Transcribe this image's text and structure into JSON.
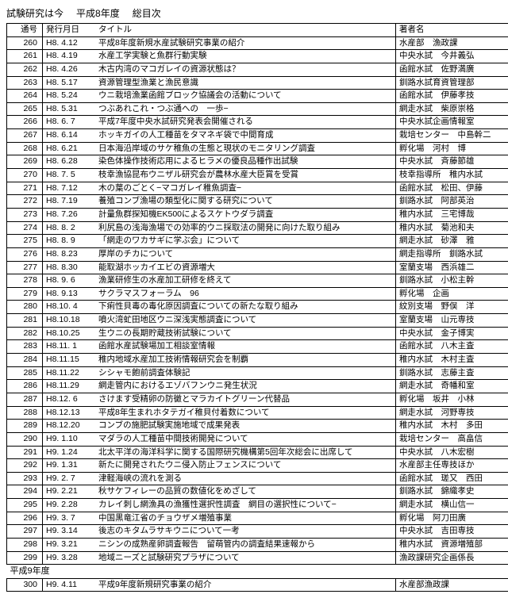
{
  "header": {
    "a": "試験研究は今",
    "b": "平成8年度",
    "c": "総目次"
  },
  "columns": {
    "no": "通号",
    "date": "発行月日",
    "title": "タイトル",
    "author": "著者名"
  },
  "rows": [
    {
      "no": "260",
      "date": "H8. 4.12",
      "title": "平成8年度新規水産試験研究事業の紹介",
      "author": "水産部　漁政課"
    },
    {
      "no": "261",
      "date": "H8. 4.19",
      "title": "水産工学実験と魚群行動実験",
      "author": "中央水試　今井義弘"
    },
    {
      "no": "262",
      "date": "H8. 4.26",
      "title": "木古内湾のマコガレイの資源状態は？",
      "author": "函館水試　佐野満廣"
    },
    {
      "no": "263",
      "date": "H8. 5.17",
      "title": "資源管理型漁業と漁民意識",
      "author": "釧路水試育資管理部"
    },
    {
      "no": "264",
      "date": "H8. 5.24",
      "title": "ウニ栽培漁業函館ブロック協議会の活動について",
      "author": "函館水試　伊藤孝技"
    },
    {
      "no": "265",
      "date": "H8. 5.31",
      "title": "つぶあれこれ・つぶ通への　一歩−",
      "author": "網走水試　柴原崇格"
    },
    {
      "no": "266",
      "date": "H8. 6. 7",
      "title": "平成7年度中央水試研究発表会開催される",
      "author": "中央水試企画情報室"
    },
    {
      "no": "267",
      "date": "H8. 6.14",
      "title": "ホッキガイの人工種苗をタマネギ袋で中間育成",
      "author": "栽培センター　中島幹二"
    },
    {
      "no": "268",
      "date": "H8. 6.21",
      "title": "日本海沿岸域のサケ稚魚の生態と現状のモニタリング調査",
      "author": "孵化場　河村　博"
    },
    {
      "no": "269",
      "date": "H8. 6.28",
      "title": "染色体操作技術応用によるヒラメの優良品種作出試験",
      "author": "中央水試　斉藤節雄"
    },
    {
      "no": "270",
      "date": "H8. 7. 5",
      "title": "枝幸漁協昆布ウニザル研究会が農林水産大臣賞を受賞",
      "author": "枝幸指導所　稚内水試"
    },
    {
      "no": "271",
      "date": "H8. 7.12",
      "title": "木の葉のごとく−マコガレイ稚魚調査−",
      "author": "函館水試　松田、伊藤"
    },
    {
      "no": "272",
      "date": "H8. 7.19",
      "title": "養殖コンブ漁場の類型化に関する研究について",
      "author": "釧路水試　阿部英治"
    },
    {
      "no": "273",
      "date": "H8. 7.26",
      "title": "計量魚群探知機EK500によるスケトウダラ調査",
      "author": "稚内水試　三宅博哉"
    },
    {
      "no": "274",
      "date": "H8. 8. 2",
      "title": "利尻島の浅海漁場での効率的ウニ採取法の開発に向けた取り組み",
      "author": "稚内水試　菊池和夫"
    },
    {
      "no": "275",
      "date": "H8. 8. 9",
      "title": "「網走のワカサギに学ぶ会」について",
      "author": "網走水試　砂澤　雅"
    },
    {
      "no": "276",
      "date": "H8. 8.23",
      "title": "厚岸のチカについて",
      "author": "網走指導所　釧路水試"
    },
    {
      "no": "277",
      "date": "H8. 8.30",
      "title": "能取湖ホッカイエビの資源増大",
      "author": "室蘭支場　西浜雄二"
    },
    {
      "no": "278",
      "date": "H8. 9. 6",
      "title": "漁業研修生の水産加工研修を終えて",
      "author": "釧路水試　小松主幹"
    },
    {
      "no": "279",
      "date": "H8. 9.13",
      "title": "サクラマスフォーラム　96",
      "author": "孵化場　企画"
    },
    {
      "no": "280",
      "date": "H8.10. 4",
      "title": "下痢性貝毒の毒化原因調査についての新たな取り組み",
      "author": "紋別支場　野俣　洋"
    },
    {
      "no": "281",
      "date": "H8.10.18",
      "title": "噴火湾虻田地区ウニ深浅実態調査について",
      "author": "室蘭支場　山元専技"
    },
    {
      "no": "282",
      "date": "H8.10.25",
      "title": "生ウニの長期貯蔵技術試験について",
      "author": "中央水試　金子博実"
    },
    {
      "no": "283",
      "date": "H8.11. 1",
      "title": "函館水産試験場加工相談室情報",
      "author": "函館水試　八木主査"
    },
    {
      "no": "284",
      "date": "H8.11.15",
      "title": "稚内地域水産加工技術情報研究会を制覇",
      "author": "稚内水試　木村主査"
    },
    {
      "no": "285",
      "date": "H8.11.22",
      "title": "シシャモ飽前調査体験記",
      "author": "釧路水試　志藤主査"
    },
    {
      "no": "286",
      "date": "H8.11.29",
      "title": "網走管内におけるエゾバフンウニ発生状況",
      "author": "網走水試　奇幡和室"
    },
    {
      "no": "287",
      "date": "H8.12. 6",
      "title": "さけます受精卵の防黴とマラカイトグリーン代替品",
      "author": "孵化場　坂井　小林"
    },
    {
      "no": "288",
      "date": "H8.12.13",
      "title": "平成8年生まれホタテガイ稚貝付着数について",
      "author": "網走水試　河野専技"
    },
    {
      "no": "289",
      "date": "H8.12.20",
      "title": "コンブの施肥試験実施地域で成果発表",
      "author": "稚内水試　木村　多田"
    },
    {
      "no": "290",
      "date": "H9. 1.10",
      "title": "マダラの人工種苗中間技術開発について",
      "author": "栽培センター　高畠信"
    },
    {
      "no": "291",
      "date": "H9. 1.24",
      "title": "北太平洋の海洋科学に関する国際研究機構第5回年次総会に出席して",
      "author": "中央水試　八木宏樹"
    },
    {
      "no": "292",
      "date": "H9. 1.31",
      "title": "新たに開発されたウニ侵入防止フェンスについて",
      "author": "水産部主任専技ほか"
    },
    {
      "no": "293",
      "date": "H9. 2. 7",
      "title": "津軽海峡の流れを測る",
      "author": "函館水試　瑳又　西田"
    },
    {
      "no": "294",
      "date": "H9. 2.21",
      "title": "秋サケフィレーの品質の数値化をめざして",
      "author": "釧路水試　錦織孝史"
    },
    {
      "no": "295",
      "date": "H9. 2.28",
      "title": "カレイ刺し網漁具の漁獲性選択性調査　網目の選択性について−",
      "author": "網走水試　横山信一"
    },
    {
      "no": "296",
      "date": "H9. 3. 7",
      "title": "中国黒竜江省のチョウザメ増殖事業",
      "author": "孵化場　阿刀田廣"
    },
    {
      "no": "297",
      "date": "H9. 3.14",
      "title": "後志のキタムラサキウニについて一考",
      "author": "中央水試　吉田専技"
    },
    {
      "no": "298",
      "date": "H9. 3.21",
      "title": "ニシンの成熟産卵調査報告　留萌管内の調査結果速報から",
      "author": "稚内水試　資源増殖部"
    },
    {
      "no": "299",
      "date": "H9. 3.28",
      "title": "地域ニーズと試験研究プラザについて",
      "author": "漁政課研究企画係長"
    }
  ],
  "section": "平成9年度",
  "rows2": [
    {
      "no": "300",
      "date": "H9. 4.11",
      "title": "平成9年度新規研究事業の紹介",
      "author": "水産部漁政課"
    }
  ]
}
